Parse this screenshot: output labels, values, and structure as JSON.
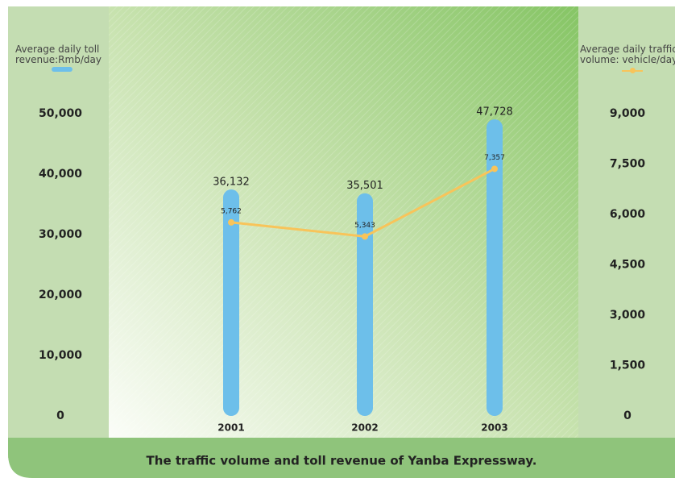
{
  "chart_data": {
    "type": "bar",
    "title": "The traffic volume and toll revenue of Yanba Expressway.",
    "categories": [
      "2001",
      "2002",
      "2003"
    ],
    "series": [
      {
        "name": "Average daily toll revenue:Rmb/day",
        "type": "bar",
        "color": "#6dbfea",
        "axis": "y",
        "values": [
          36132,
          35501,
          47728
        ],
        "value_labels": [
          "36,132",
          "35,501",
          "47,728"
        ]
      },
      {
        "name": "Average daily traffic volume: vehicle/day",
        "type": "line",
        "color": "#f8c45a",
        "axis": "y2",
        "values": [
          5762,
          5343,
          7357
        ],
        "value_labels": [
          "5,762",
          "5,343",
          "7,357"
        ]
      }
    ],
    "ylim": [
      0,
      50000
    ],
    "yticks": [
      0,
      {
        "value": 10000,
        "label": "10,000"
      },
      {
        "value": 20000,
        "label": "20,000"
      },
      {
        "value": 30000,
        "label": "30,000"
      },
      {
        "value": 40000,
        "label": "40,000"
      },
      {
        "value": 50000,
        "label": "50,000"
      }
    ],
    "y2lim": [
      0,
      9000
    ],
    "y2ticks": [
      0,
      {
        "value": 1500,
        "label": "1,500"
      },
      {
        "value": 3000,
        "label": "3,000"
      },
      {
        "value": 4500,
        "label": "4,500"
      },
      {
        "value": 6000,
        "label": "6,000"
      },
      {
        "value": 7500,
        "label": "7,500"
      },
      {
        "value": 9000,
        "label": "9,000"
      }
    ]
  }
}
